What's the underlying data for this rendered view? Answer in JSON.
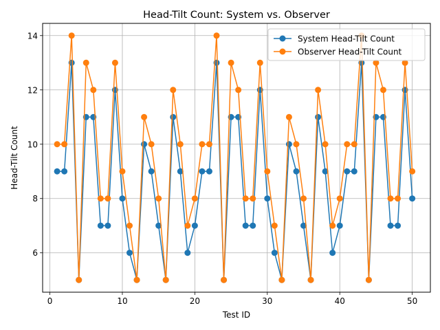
{
  "chart_data": {
    "type": "line",
    "title": "Head-Tilt Count: System vs. Observer",
    "xlabel": "Test ID",
    "ylabel": "Head-Tilt Count",
    "xlim": [
      -1,
      52.5
    ],
    "ylim": [
      4.55,
      14.45
    ],
    "xticks": [
      0,
      10,
      20,
      30,
      40,
      50
    ],
    "yticks": [
      6,
      8,
      10,
      12,
      14
    ],
    "grid": true,
    "legend_position": "top-right",
    "x": [
      1,
      2,
      3,
      4,
      5,
      6,
      7,
      8,
      9,
      10,
      11,
      12,
      13,
      14,
      15,
      16,
      17,
      18,
      19,
      20,
      21,
      22,
      23,
      24,
      25,
      26,
      27,
      28,
      29,
      30,
      31,
      32,
      33,
      34,
      35,
      36,
      37,
      38,
      39,
      40,
      41,
      42,
      43,
      44,
      45,
      46,
      47,
      48,
      49,
      50
    ],
    "series": [
      {
        "name": "System Head-Tilt Count",
        "color": "#1f77b4",
        "values": [
          9,
          9,
          13,
          5,
          11,
          11,
          7,
          7,
          12,
          8,
          6,
          5,
          10,
          9,
          7,
          5,
          11,
          9,
          6,
          7,
          9,
          9,
          13,
          5,
          11,
          11,
          7,
          7,
          12,
          8,
          6,
          5,
          10,
          9,
          7,
          5,
          11,
          9,
          6,
          7,
          9,
          9,
          13,
          5,
          11,
          11,
          7,
          7,
          12,
          8
        ]
      },
      {
        "name": "Observer Head-Tilt Count",
        "color": "#ff7f0e",
        "values": [
          10,
          10,
          14,
          5,
          13,
          12,
          8,
          8,
          13,
          9,
          7,
          5,
          11,
          10,
          8,
          5,
          12,
          10,
          7,
          8,
          10,
          10,
          14,
          5,
          13,
          12,
          8,
          8,
          13,
          9,
          7,
          5,
          11,
          10,
          8,
          5,
          12,
          10,
          7,
          8,
          10,
          10,
          14,
          5,
          13,
          12,
          8,
          8,
          13,
          9
        ]
      }
    ]
  }
}
